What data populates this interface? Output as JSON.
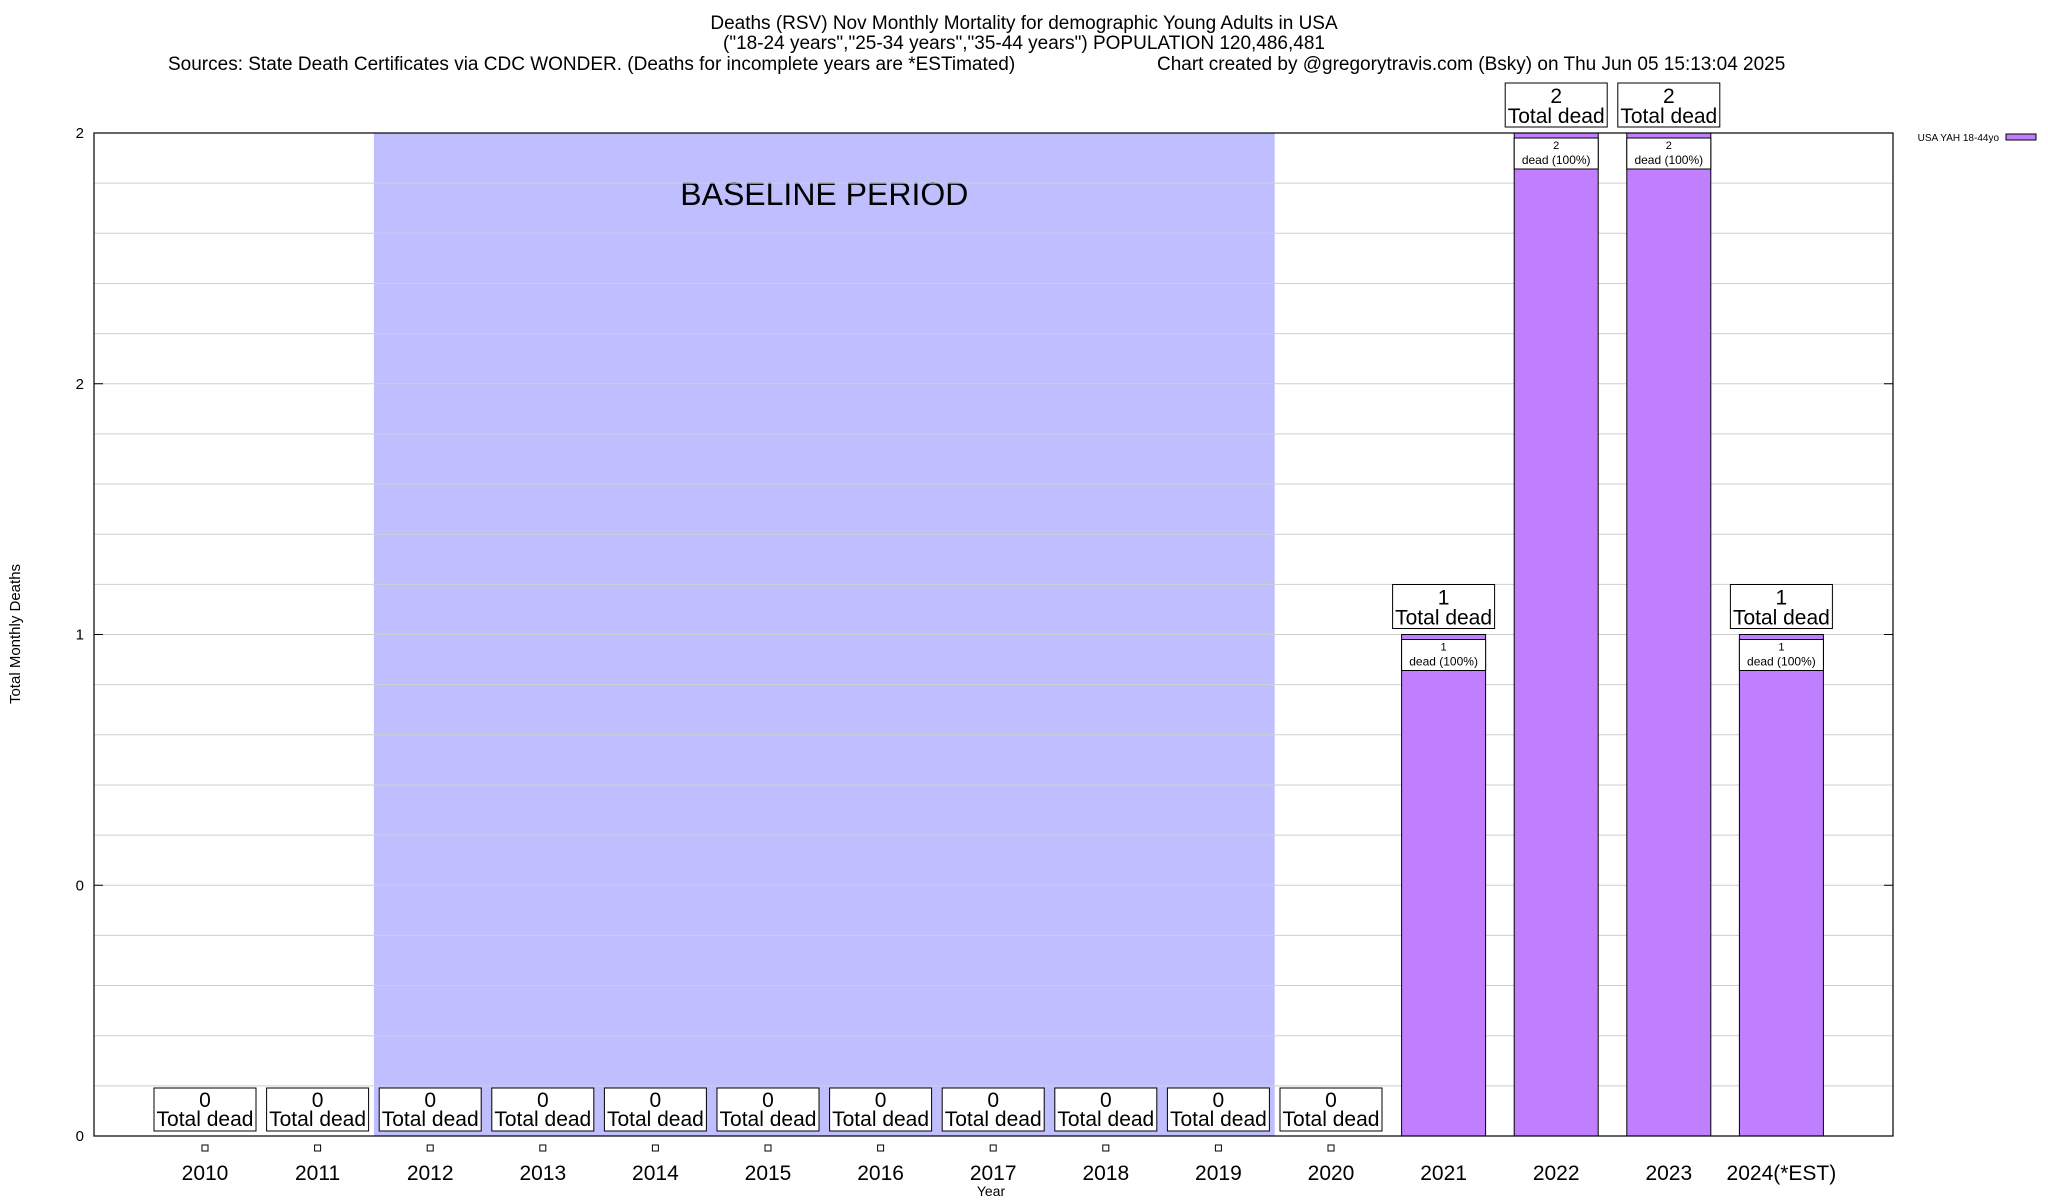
{
  "chart_data": {
    "type": "bar",
    "title": "Deaths (RSV) Nov Monthly Mortality for demographic Young Adults in USA",
    "subtitle": "(\"18-24 years\",\"25-34 years\",\"35-44 years\") POPULATION 120,486,481",
    "source_note": "Sources: State Death Certificates via CDC WONDER. (Deaths for incomplete years are *ESTimated)",
    "credit_note": "Chart created by @gregorytravis.com (Bsky) on Thu Jun 05 15:13:04 2025",
    "xlabel": "Year",
    "ylabel": "Total Monthly Deaths",
    "categories": [
      "2010",
      "2011",
      "2012",
      "2013",
      "2014",
      "2015",
      "2016",
      "2017",
      "2018",
      "2019",
      "2020",
      "2021",
      "2022",
      "2023",
      "2024(*EST)"
    ],
    "series": [
      {
        "name": "USA YAH 18-44yo",
        "color": "#bf7fff",
        "values": [
          0,
          0,
          0,
          0,
          0,
          0,
          0,
          0,
          0,
          0,
          0,
          1,
          2,
          2,
          1
        ]
      }
    ],
    "total_label_text": "Total dead",
    "bar_label_text": "dead (100%)",
    "ylim": [
      0,
      2
    ],
    "ytick_labels": [
      "0",
      "0",
      "1",
      "2",
      "2"
    ],
    "grid": true,
    "legend_position": "top-right",
    "baseline": {
      "label": "BASELINE PERIOD",
      "start": "2012",
      "end": "2019",
      "color": "#bfbfff"
    }
  }
}
